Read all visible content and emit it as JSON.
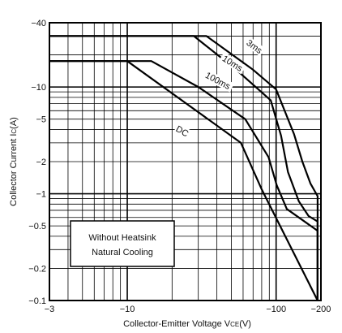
{
  "chart_data": {
    "type": "line",
    "xlabel": "Collector-Emitter Voltage V",
    "xlabel_sub": "CE",
    "xlabel_unit": "(V)",
    "ylabel": "Collector Current I",
    "ylabel_sub": "C",
    "ylabel_unit": "(A)",
    "xscale": "log",
    "yscale": "log",
    "xlim": [
      -3,
      -200
    ],
    "ylim": [
      -0.1,
      -40
    ],
    "grid": true,
    "x_ticks": [
      {
        "value": -3,
        "label": "−3"
      },
      {
        "value": -10,
        "label": "−10"
      },
      {
        "value": -100,
        "label": "−100"
      },
      {
        "value": -200,
        "label": "−200"
      }
    ],
    "y_ticks": [
      {
        "value": -0.1,
        "label": "−0.1"
      },
      {
        "value": -0.2,
        "label": "−0.2"
      },
      {
        "value": -0.5,
        "label": "−0.5"
      },
      {
        "value": -1,
        "label": "−1"
      },
      {
        "value": -2,
        "label": "−2"
      },
      {
        "value": -5,
        "label": "−5"
      },
      {
        "value": -10,
        "label": "−10"
      },
      {
        "value": -40,
        "label": "−40"
      }
    ],
    "series": [
      {
        "name": "3ms",
        "points": [
          [
            -3,
            -30
          ],
          [
            -34,
            -30
          ],
          [
            -70,
            -14.5
          ],
          [
            -100,
            -9.5
          ],
          [
            -132,
            -3.6
          ],
          [
            -150,
            -2
          ],
          [
            -170,
            -1.25
          ],
          [
            -190,
            -0.95
          ],
          [
            -190,
            -0.1
          ]
        ]
      },
      {
        "name": "10ms",
        "points": [
          [
            -3,
            -30
          ],
          [
            -28,
            -30
          ],
          [
            -54,
            -14.5
          ],
          [
            -92,
            -7.5
          ],
          [
            -108,
            -3.5
          ],
          [
            -120,
            -1.6
          ],
          [
            -142,
            -0.85
          ],
          [
            -165,
            -0.62
          ],
          [
            -190,
            -0.55
          ],
          [
            -190,
            -0.1
          ]
        ]
      },
      {
        "name": "100ms",
        "points": [
          [
            -3,
            -17.5
          ],
          [
            -14.5,
            -17.5
          ],
          [
            -30,
            -10
          ],
          [
            -62,
            -5
          ],
          [
            -89,
            -2.2
          ],
          [
            -101,
            -1.2
          ],
          [
            -118,
            -0.72
          ],
          [
            -190,
            -0.45
          ],
          [
            -190,
            -0.1
          ]
        ]
      },
      {
        "name": "DC",
        "points": [
          [
            -3,
            -17.5
          ],
          [
            -10,
            -17.5
          ],
          [
            -58,
            -3
          ],
          [
            -80,
            -1.1
          ],
          [
            -190,
            -0.1
          ]
        ]
      }
    ],
    "annotations": [
      {
        "text": "3ms",
        "x": -70,
        "y": -23
      },
      {
        "text": "10ms",
        "x": -50,
        "y": -16
      },
      {
        "text": "100ms",
        "x": -40,
        "y": -11
      },
      {
        "text": "DC",
        "x": -23,
        "y": -3.7
      }
    ],
    "note": [
      "Without Heatsink",
      "Natural Cooling"
    ]
  }
}
